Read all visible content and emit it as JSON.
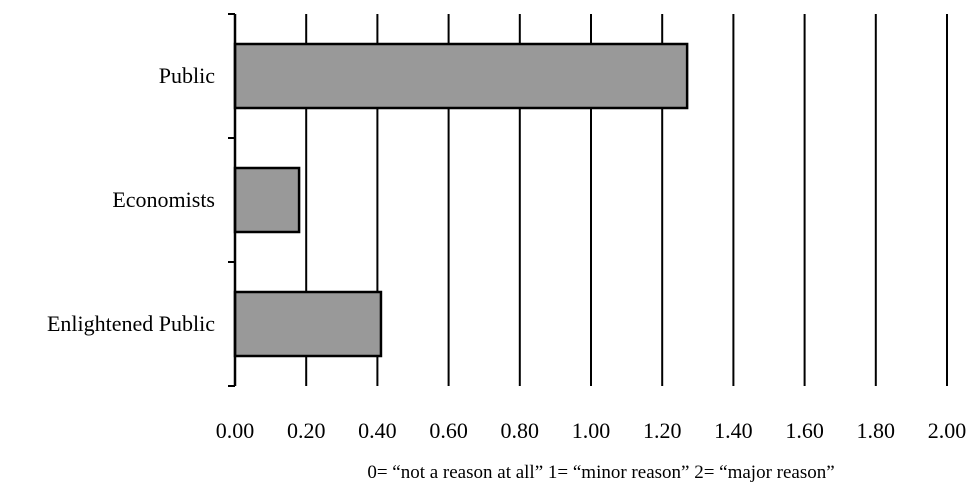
{
  "chart_data": {
    "type": "bar",
    "orientation": "horizontal",
    "categories": [
      "Public",
      "Economists",
      "Enlightened Public"
    ],
    "values": [
      1.27,
      0.18,
      0.41
    ],
    "xlim": [
      0,
      2
    ],
    "xticks": [
      "0.00",
      "0.20",
      "0.40",
      "0.60",
      "0.80",
      "1.00",
      "1.20",
      "1.40",
      "1.60",
      "1.80",
      "2.00"
    ],
    "grid": "vertical",
    "legend": "none",
    "note": "0= “not a reason at all”  1= “minor reason”  2= “major reason”",
    "bar_color": "#999999",
    "bar_edge_color": "#000000"
  }
}
